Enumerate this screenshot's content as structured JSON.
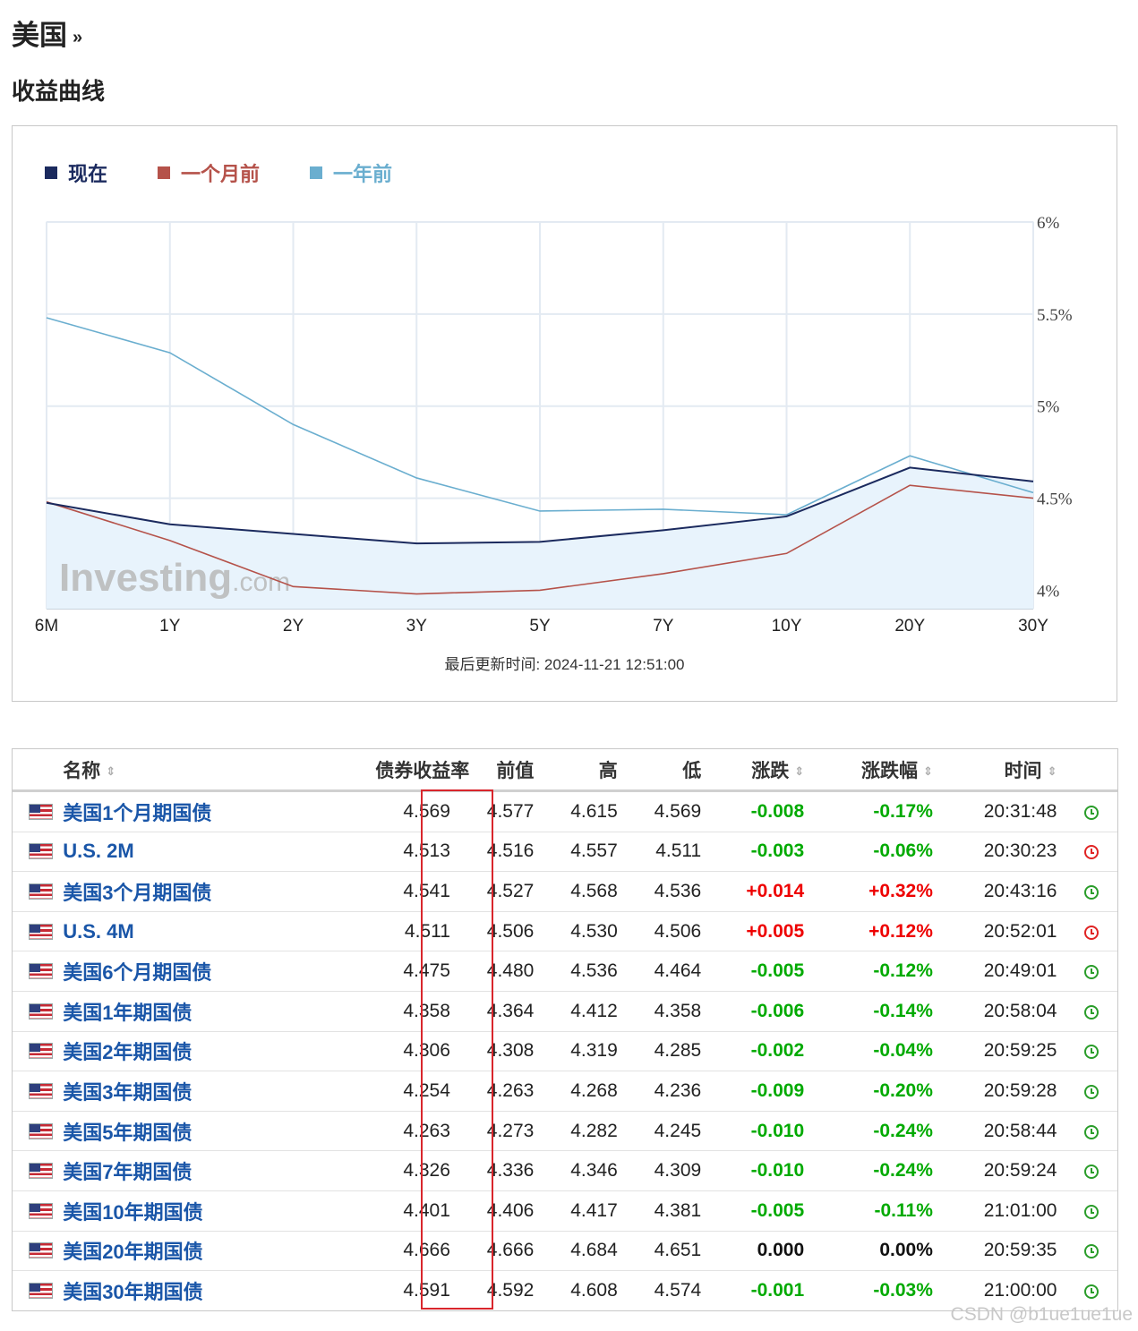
{
  "header": {
    "country": "美国",
    "arrow": "»",
    "section": "收益曲线"
  },
  "chart_data": {
    "type": "line",
    "categories": [
      "6M",
      "1Y",
      "2Y",
      "3Y",
      "5Y",
      "7Y",
      "10Y",
      "20Y",
      "30Y"
    ],
    "series": [
      {
        "name": "现在",
        "color": "#1b2a5e",
        "fill": "#e8f3fc",
        "values": [
          4.475,
          4.358,
          4.306,
          4.254,
          4.263,
          4.326,
          4.401,
          4.666,
          4.591
        ]
      },
      {
        "name": "一个月前",
        "color": "#b5524a",
        "values": [
          4.48,
          4.27,
          4.02,
          3.98,
          4.0,
          4.09,
          4.2,
          4.57,
          4.5
        ]
      },
      {
        "name": "一年前",
        "color": "#6aaecf",
        "values": [
          5.48,
          5.29,
          4.9,
          4.61,
          4.43,
          4.44,
          4.41,
          4.73,
          4.53
        ]
      }
    ],
    "y_ticks": [
      "6%",
      "5.5%",
      "5%",
      "4.5%",
      "4%"
    ],
    "ylim": [
      3.9,
      6
    ],
    "grid": true,
    "legend": "top-left",
    "watermark": {
      "brand": "Investing",
      "suffix": ".com"
    },
    "updated": "最后更新时间: 2024-11-21 12:51:00"
  },
  "table": {
    "headers": {
      "name": "名称",
      "yield": "债券收益率",
      "prev": "前值",
      "high": "高",
      "low": "低",
      "chg": "涨跌",
      "chg_pct": "涨跌幅",
      "time": "时间"
    },
    "sort_glyph": "⇕",
    "rows": [
      {
        "name": "美国1个月期国债",
        "yield": "4.569",
        "prev": "4.577",
        "high": "4.615",
        "low": "4.569",
        "chg": "-0.008",
        "chg_pct": "-0.17%",
        "time": "20:31:48",
        "dir": "neg",
        "clock": "green"
      },
      {
        "name": "U.S. 2M",
        "yield": "4.513",
        "prev": "4.516",
        "high": "4.557",
        "low": "4.511",
        "chg": "-0.003",
        "chg_pct": "-0.06%",
        "time": "20:30:23",
        "dir": "neg",
        "clock": "red"
      },
      {
        "name": "美国3个月期国债",
        "yield": "4.541",
        "prev": "4.527",
        "high": "4.568",
        "low": "4.536",
        "chg": "+0.014",
        "chg_pct": "+0.32%",
        "time": "20:43:16",
        "dir": "pos",
        "clock": "green"
      },
      {
        "name": "U.S. 4M",
        "yield": "4.511",
        "prev": "4.506",
        "high": "4.530",
        "low": "4.506",
        "chg": "+0.005",
        "chg_pct": "+0.12%",
        "time": "20:52:01",
        "dir": "pos",
        "clock": "red"
      },
      {
        "name": "美国6个月期国债",
        "yield": "4.475",
        "prev": "4.480",
        "high": "4.536",
        "low": "4.464",
        "chg": "-0.005",
        "chg_pct": "-0.12%",
        "time": "20:49:01",
        "dir": "neg",
        "clock": "green"
      },
      {
        "name": "美国1年期国债",
        "yield": "4.358",
        "prev": "4.364",
        "high": "4.412",
        "low": "4.358",
        "chg": "-0.006",
        "chg_pct": "-0.14%",
        "time": "20:58:04",
        "dir": "neg",
        "clock": "green"
      },
      {
        "name": "美国2年期国债",
        "yield": "4.306",
        "prev": "4.308",
        "high": "4.319",
        "low": "4.285",
        "chg": "-0.002",
        "chg_pct": "-0.04%",
        "time": "20:59:25",
        "dir": "neg",
        "clock": "green"
      },
      {
        "name": "美国3年期国债",
        "yield": "4.254",
        "prev": "4.263",
        "high": "4.268",
        "low": "4.236",
        "chg": "-0.009",
        "chg_pct": "-0.20%",
        "time": "20:59:28",
        "dir": "neg",
        "clock": "green"
      },
      {
        "name": "美国5年期国债",
        "yield": "4.263",
        "prev": "4.273",
        "high": "4.282",
        "low": "4.245",
        "chg": "-0.010",
        "chg_pct": "-0.24%",
        "time": "20:58:44",
        "dir": "neg",
        "clock": "green"
      },
      {
        "name": "美国7年期国债",
        "yield": "4.326",
        "prev": "4.336",
        "high": "4.346",
        "low": "4.309",
        "chg": "-0.010",
        "chg_pct": "-0.24%",
        "time": "20:59:24",
        "dir": "neg",
        "clock": "green"
      },
      {
        "name": "美国10年期国债",
        "yield": "4.401",
        "prev": "4.406",
        "high": "4.417",
        "low": "4.381",
        "chg": "-0.005",
        "chg_pct": "-0.11%",
        "time": "21:01:00",
        "dir": "neg",
        "clock": "green"
      },
      {
        "name": "美国20年期国债",
        "yield": "4.666",
        "prev": "4.666",
        "high": "4.684",
        "low": "4.651",
        "chg": "0.000",
        "chg_pct": "0.00%",
        "time": "20:59:35",
        "dir": "zero",
        "clock": "green"
      },
      {
        "name": "美国30年期国债",
        "yield": "4.591",
        "prev": "4.592",
        "high": "4.608",
        "low": "4.574",
        "chg": "-0.001",
        "chg_pct": "-0.03%",
        "time": "21:00:00",
        "dir": "neg",
        "clock": "green"
      }
    ]
  },
  "watermark": "CSDN @b1ue1ue1ue"
}
